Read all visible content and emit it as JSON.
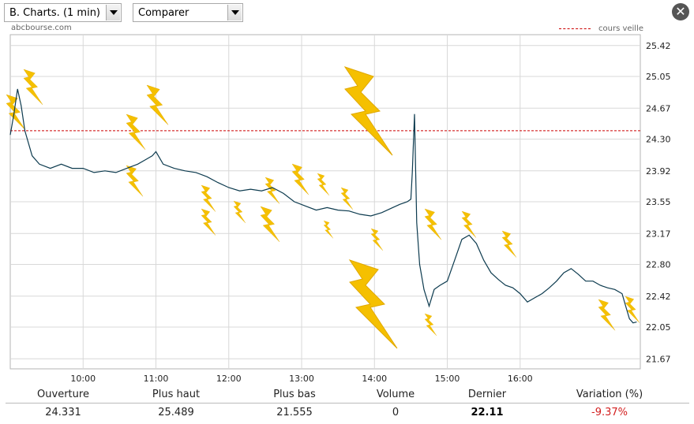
{
  "controls": {
    "chart_select": "B. Charts. (1 min)",
    "compare_select": "Comparer",
    "close_icon": "close-icon"
  },
  "site_label": "abcbourse.com",
  "legend": {
    "label": "cours veille",
    "color": "#cc0000"
  },
  "colors": {
    "line": "#0d3b4f",
    "grid": "#d8d8d8",
    "bolt": "#f5c000",
    "reference": "#cc0000",
    "negative": "#d32020"
  },
  "stats": [
    {
      "label": "Ouverture",
      "value": "24.331",
      "style": "normal"
    },
    {
      "label": "Plus haut",
      "value": "25.489",
      "style": "normal"
    },
    {
      "label": "Plus bas",
      "value": "21.555",
      "style": "normal"
    },
    {
      "label": "Volume",
      "value": "0",
      "style": "normal"
    },
    {
      "label": "Dernier",
      "value": "22.11",
      "style": "bold"
    },
    {
      "label": "Variation (%)",
      "value": "-9.37%",
      "style": "red"
    }
  ],
  "chart_data": {
    "type": "line",
    "xlabel": "",
    "ylabel": "",
    "xlim": [
      9.0,
      17.65
    ],
    "ylim": [
      21.55,
      25.55
    ],
    "x_ticks": [
      {
        "value": 10,
        "label": "10:00"
      },
      {
        "value": 11,
        "label": "11:00"
      },
      {
        "value": 12,
        "label": "12:00"
      },
      {
        "value": 13,
        "label": "13:00"
      },
      {
        "value": 14,
        "label": "14:00"
      },
      {
        "value": 15,
        "label": "15:00"
      },
      {
        "value": 16,
        "label": "16:00"
      }
    ],
    "y_ticks": [
      "25.42",
      "25.05",
      "24.67",
      "24.30",
      "23.92",
      "23.55",
      "23.17",
      "22.80",
      "22.42",
      "22.05",
      "21.67"
    ],
    "reference_line": {
      "name": "cours veille",
      "value": 24.4
    },
    "grid": true,
    "series": [
      {
        "x": [
          9.0,
          9.05,
          9.1,
          9.15,
          9.2,
          9.3,
          9.4,
          9.55,
          9.7,
          9.85,
          10.0,
          10.15,
          10.3,
          10.45,
          10.6,
          10.75,
          10.85,
          10.95,
          11.0,
          11.1,
          11.25,
          11.4,
          11.55,
          11.7,
          11.85,
          12.0,
          12.15,
          12.3,
          12.45,
          12.6,
          12.75,
          12.9,
          13.05,
          13.2,
          13.35,
          13.5,
          13.65,
          13.8,
          13.95,
          14.1,
          14.25,
          14.35,
          14.45,
          14.5,
          14.52,
          14.55,
          14.58,
          14.62,
          14.68,
          14.75,
          14.82,
          14.9,
          15.0,
          15.1,
          15.2,
          15.3,
          15.4,
          15.5,
          15.6,
          15.7,
          15.8,
          15.9,
          16.0,
          16.1,
          16.2,
          16.3,
          16.4,
          16.5,
          16.6,
          16.7,
          16.8,
          16.9,
          17.0,
          17.1,
          17.2,
          17.3,
          17.4,
          17.45,
          17.5,
          17.55,
          17.6
        ],
        "values": [
          24.35,
          24.6,
          24.9,
          24.7,
          24.4,
          24.1,
          24.0,
          23.95,
          24.0,
          23.95,
          23.95,
          23.9,
          23.92,
          23.9,
          23.95,
          24.0,
          24.05,
          24.1,
          24.15,
          24.0,
          23.95,
          23.92,
          23.9,
          23.85,
          23.78,
          23.72,
          23.68,
          23.7,
          23.68,
          23.72,
          23.65,
          23.55,
          23.5,
          23.45,
          23.48,
          23.45,
          23.44,
          23.4,
          23.38,
          23.42,
          23.48,
          23.52,
          23.55,
          23.58,
          23.9,
          24.6,
          23.3,
          22.8,
          22.5,
          22.3,
          22.5,
          22.55,
          22.6,
          22.85,
          23.1,
          23.15,
          23.05,
          22.85,
          22.7,
          22.62,
          22.55,
          22.52,
          22.45,
          22.35,
          22.4,
          22.45,
          22.52,
          22.6,
          22.7,
          22.75,
          22.68,
          22.6,
          22.6,
          22.55,
          22.52,
          22.5,
          22.45,
          22.3,
          22.15,
          22.1,
          22.11
        ]
      }
    ]
  }
}
